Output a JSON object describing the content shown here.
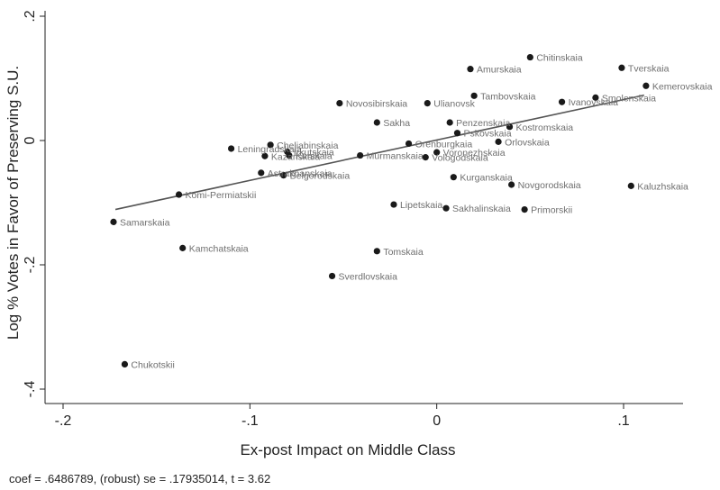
{
  "chart_data": {
    "type": "scatter",
    "xlabel": "Ex-post Impact on Middle Class",
    "ylabel": "Log % Votes in Favor of Preserving S.U.",
    "xlim": [
      -0.2,
      0.12
    ],
    "ylim": [
      -0.4,
      0.2
    ],
    "xticks": [
      -0.2,
      -0.1,
      0,
      0.1
    ],
    "xtick_labels": [
      "-.2",
      "-.1",
      "0",
      ".1"
    ],
    "yticks": [
      -0.4,
      -0.2,
      0,
      0.2
    ],
    "ytick_labels": [
      "-.4",
      "-.2",
      "0",
      ".2"
    ],
    "grid": false,
    "fit_line": {
      "x": [
        -0.172,
        0.111
      ],
      "y": [
        -0.111,
        0.073
      ]
    },
    "points": [
      {
        "label": "Chukotskii",
        "x": -0.167,
        "y": -0.36
      },
      {
        "label": "Samarskaia",
        "x": -0.173,
        "y": -0.131
      },
      {
        "label": "Kamchatskaia",
        "x": -0.136,
        "y": -0.173
      },
      {
        "label": "Komi-Permiatskii",
        "x": -0.138,
        "y": -0.087
      },
      {
        "label": "Astrakhanskaia",
        "x": -0.094,
        "y": -0.052
      },
      {
        "label": "Belgorodskaia",
        "x": -0.082,
        "y": -0.056
      },
      {
        "label": "Leningradskaia",
        "x": -0.11,
        "y": -0.013
      },
      {
        "label": "Kazanskaia",
        "x": -0.092,
        "y": -0.025
      },
      {
        "label": "Cheliabinskaia",
        "x": -0.089,
        "y": -0.007
      },
      {
        "label": "Irkutskaia",
        "x": -0.08,
        "y": -0.018
      },
      {
        "label": "Kurskaia",
        "x": -0.079,
        "y": -0.024
      },
      {
        "label": "Tomskaia",
        "x": -0.032,
        "y": -0.178
      },
      {
        "label": "Sverdlovskaia",
        "x": -0.056,
        "y": -0.218
      },
      {
        "label": "Lipetskaia",
        "x": -0.023,
        "y": -0.103
      },
      {
        "label": "Novosibirskaia",
        "x": -0.052,
        "y": 0.06
      },
      {
        "label": "Sakha",
        "x": -0.032,
        "y": 0.029
      },
      {
        "label": "Tverskaia",
        "x": 0.099,
        "y": 0.117
      },
      {
        "label": "Chitinskaia",
        "x": 0.05,
        "y": 0.134
      },
      {
        "label": "Amurskaia",
        "x": 0.018,
        "y": 0.115
      },
      {
        "label": "Kemerovskaia",
        "x": 0.112,
        "y": 0.088
      },
      {
        "label": "Smolenskaia",
        "x": 0.085,
        "y": 0.069
      },
      {
        "label": "Ivanovskaia",
        "x": 0.067,
        "y": 0.062
      },
      {
        "label": "Tambovskaia",
        "x": 0.02,
        "y": 0.072
      },
      {
        "label": "Ulianovsk",
        "x": -0.005,
        "y": 0.06
      },
      {
        "label": "Penzenskaia",
        "x": 0.007,
        "y": 0.029
      },
      {
        "label": "Pskovskaia",
        "x": 0.011,
        "y": 0.012
      },
      {
        "label": "Kurganskaia",
        "x": 0.009,
        "y": -0.059
      },
      {
        "label": "Novgorodskaia",
        "x": 0.04,
        "y": -0.071
      },
      {
        "label": "Kaluzhskaia",
        "x": 0.104,
        "y": -0.073
      },
      {
        "label": "Sakhalinskaia",
        "x": 0.005,
        "y": -0.109
      },
      {
        "label": "Primorskii",
        "x": 0.047,
        "y": -0.111
      },
      {
        "label": "Murmanskaia",
        "x": -0.041,
        "y": -0.024
      },
      {
        "label": "Orenburgkaia",
        "x": -0.015,
        "y": -0.005
      },
      {
        "label": "Voronezhskaia",
        "x": 0.0,
        "y": -0.019
      },
      {
        "label": "Vologodskaia",
        "x": -0.006,
        "y": -0.027
      },
      {
        "label": "Orlovskaia",
        "x": 0.033,
        "y": -0.002
      },
      {
        "label": "Kostromskaia",
        "x": 0.039,
        "y": 0.022
      }
    ]
  },
  "footnote": "coef = .6486789, (robust) se = .17935014, t = 3.62"
}
